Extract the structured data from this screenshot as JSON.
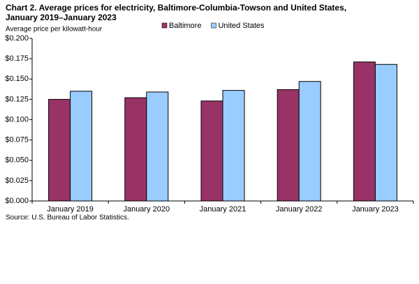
{
  "chart_data": {
    "type": "bar",
    "title": [
      "Chart 2. Average prices for electricity, Baltimore-Columbia-Towson and United States,",
      "January 2019–January 2023"
    ],
    "y_label": "Average price per kilowatt-hour",
    "source": "Source: U.S. Bureau of Labor Statistics.",
    "categories": [
      "January 2019",
      "January 2020",
      "January 2021",
      "January 2022",
      "January 2023"
    ],
    "series": [
      {
        "name": "Baltimore",
        "color": "#993366",
        "values": [
          0.125,
          0.127,
          0.123,
          0.137,
          0.171
        ]
      },
      {
        "name": "United States",
        "color": "#99ccff",
        "values": [
          0.135,
          0.134,
          0.136,
          0.147,
          0.168
        ]
      }
    ],
    "ylim": [
      0,
      0.2
    ],
    "yticks": [
      {
        "value": 0,
        "label": "$0.000"
      },
      {
        "value": 0.025,
        "label": "$0.025"
      },
      {
        "value": 0.05,
        "label": "$0.050"
      },
      {
        "value": 0.075,
        "label": "$0.075"
      },
      {
        "value": 0.1,
        "label": "$0.100"
      },
      {
        "value": 0.125,
        "label": "$0.125"
      },
      {
        "value": 0.15,
        "label": "$0.150"
      },
      {
        "value": 0.175,
        "label": "$0.175"
      },
      {
        "value": 0.2,
        "label": "$0.200"
      }
    ],
    "legend": "top"
  }
}
